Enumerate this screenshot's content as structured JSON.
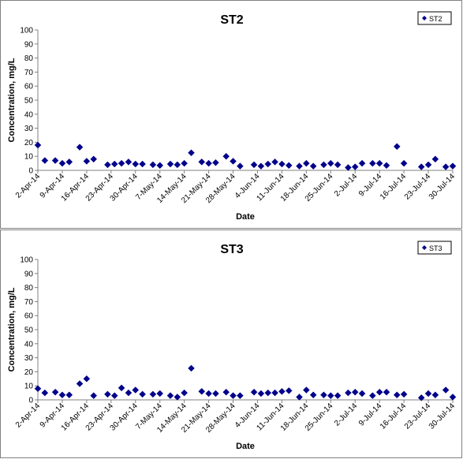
{
  "chart_data": [
    {
      "type": "scatter",
      "title": "ST2",
      "xlabel": "Date",
      "ylabel": "Concentration, mg/L",
      "ylim": [
        0,
        100
      ],
      "yticks": [
        0,
        10,
        20,
        30,
        40,
        50,
        60,
        70,
        80,
        90,
        100
      ],
      "xlim": [
        "2014-04-02",
        "2014-07-30"
      ],
      "xtick_labels": [
        "2-Apr-14",
        "9-Apr-14",
        "16-Apr-14",
        "23-Apr-14",
        "30-Apr-14",
        "7-May-14",
        "14-May-14",
        "21-May-14",
        "28-May-14",
        "4-Jun-14",
        "11-Jun-14",
        "18-Jun-14",
        "25-Jun-14",
        "2-Jul-14",
        "9-Jul-14",
        "16-Jul-14",
        "23-Jul-14",
        "30-Jul-14"
      ],
      "grid": false,
      "legend_position": "top-right",
      "series": [
        {
          "name": "ST2",
          "color": "#00008b",
          "marker": "diamond",
          "x": [
            "2014-04-02",
            "2014-04-04",
            "2014-04-07",
            "2014-04-09",
            "2014-04-11",
            "2014-04-14",
            "2014-04-16",
            "2014-04-18",
            "2014-04-22",
            "2014-04-24",
            "2014-04-26",
            "2014-04-28",
            "2014-04-30",
            "2014-05-02",
            "2014-05-05",
            "2014-05-07",
            "2014-05-10",
            "2014-05-12",
            "2014-05-14",
            "2014-05-16",
            "2014-05-19",
            "2014-05-21",
            "2014-05-23",
            "2014-05-26",
            "2014-05-28",
            "2014-05-30",
            "2014-06-03",
            "2014-06-05",
            "2014-06-07",
            "2014-06-09",
            "2014-06-11",
            "2014-06-13",
            "2014-06-16",
            "2014-06-18",
            "2014-06-20",
            "2014-06-23",
            "2014-06-25",
            "2014-06-27",
            "2014-06-30",
            "2014-07-02",
            "2014-07-04",
            "2014-07-07",
            "2014-07-09",
            "2014-07-11",
            "2014-07-14",
            "2014-07-16",
            "2014-07-21",
            "2014-07-23",
            "2014-07-25",
            "2014-07-28",
            "2014-07-30"
          ],
          "y": [
            18,
            7,
            7,
            5,
            6,
            16.5,
            6.5,
            8,
            4,
            4.5,
            5,
            6,
            4.5,
            4.5,
            4,
            3.5,
            4.5,
            4,
            5,
            12.5,
            6,
            5,
            5.5,
            10,
            6.5,
            3,
            4,
            3,
            4.5,
            6,
            4.5,
            3.5,
            3,
            5,
            3,
            4,
            5,
            4,
            2,
            2.5,
            5,
            5,
            5,
            3.5,
            17,
            5,
            2.5,
            4,
            8,
            2.5,
            3
          ]
        }
      ]
    },
    {
      "type": "scatter",
      "title": "ST3",
      "xlabel": "Date",
      "ylabel": "Concentration, mg/L",
      "ylim": [
        0,
        100
      ],
      "yticks": [
        0,
        10,
        20,
        30,
        40,
        50,
        60,
        70,
        80,
        90,
        100
      ],
      "xlim": [
        "2014-04-02",
        "2014-07-30"
      ],
      "xtick_labels": [
        "2-Apr-14",
        "9-Apr-14",
        "16-Apr-14",
        "23-Apr-14",
        "30-Apr-14",
        "7-May-14",
        "14-May-14",
        "21-May-14",
        "28-May-14",
        "4-Jun-14",
        "11-Jun-14",
        "18-Jun-14",
        "25-Jun-14",
        "2-Jul-14",
        "9-Jul-14",
        "16-Jul-14",
        "23-Jul-14",
        "30-Jul-14"
      ],
      "grid": false,
      "legend_position": "top-right",
      "series": [
        {
          "name": "ST3",
          "color": "#00008b",
          "marker": "diamond",
          "x": [
            "2014-04-02",
            "2014-04-04",
            "2014-04-07",
            "2014-04-09",
            "2014-04-11",
            "2014-04-14",
            "2014-04-16",
            "2014-04-18",
            "2014-04-22",
            "2014-04-24",
            "2014-04-26",
            "2014-04-28",
            "2014-04-30",
            "2014-05-02",
            "2014-05-05",
            "2014-05-07",
            "2014-05-10",
            "2014-05-12",
            "2014-05-14",
            "2014-05-16",
            "2014-05-19",
            "2014-05-21",
            "2014-05-23",
            "2014-05-26",
            "2014-05-28",
            "2014-05-30",
            "2014-06-03",
            "2014-06-05",
            "2014-06-07",
            "2014-06-09",
            "2014-06-11",
            "2014-06-13",
            "2014-06-16",
            "2014-06-18",
            "2014-06-20",
            "2014-06-23",
            "2014-06-25",
            "2014-06-27",
            "2014-06-30",
            "2014-07-02",
            "2014-07-04",
            "2014-07-07",
            "2014-07-09",
            "2014-07-11",
            "2014-07-14",
            "2014-07-16",
            "2014-07-21",
            "2014-07-23",
            "2014-07-25",
            "2014-07-28",
            "2014-07-30"
          ],
          "y": [
            8,
            5,
            5.5,
            3.5,
            3.5,
            11.5,
            15,
            3,
            4,
            3,
            8.5,
            5,
            7,
            4,
            4,
            4.5,
            3,
            2,
            5,
            22.5,
            6,
            4.5,
            4.5,
            5.5,
            3,
            3,
            5.5,
            4.5,
            5,
            5,
            6,
            6.5,
            2,
            7,
            3.5,
            3.5,
            3,
            3,
            5,
            5.5,
            4.5,
            3,
            5.5,
            5.5,
            3.5,
            4,
            1.5,
            4.5,
            3.5,
            7,
            2
          ]
        }
      ]
    }
  ]
}
